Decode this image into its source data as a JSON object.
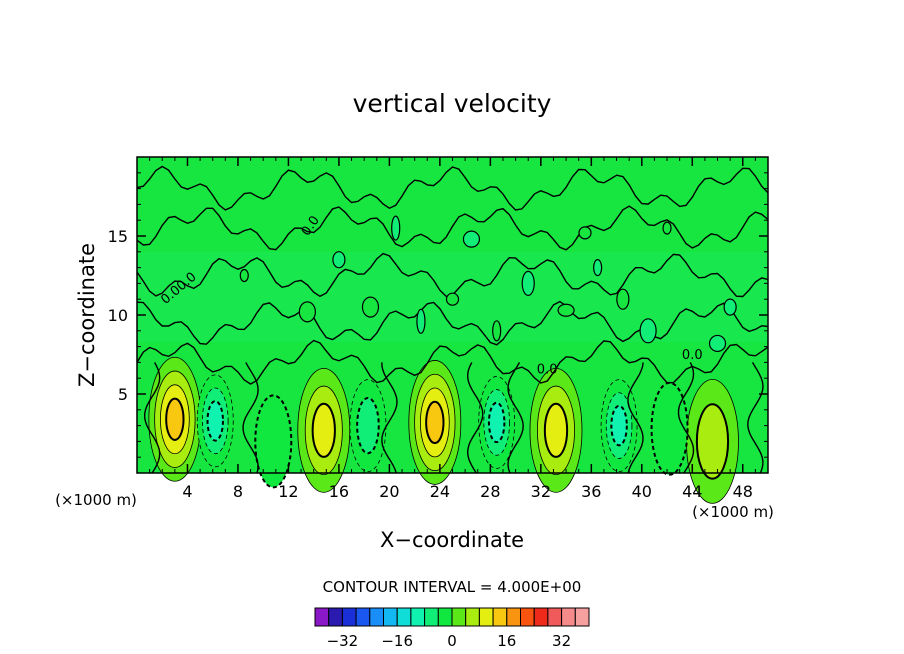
{
  "chart_data": {
    "type": "heatmap",
    "title": "vertical velocity",
    "xlabel": "X−coordinate",
    "ylabel": "Z−coordinate",
    "x_unit_left": "(×1000 m)",
    "x_unit_right": "(×1000 m)",
    "xlim": [
      0,
      50
    ],
    "ylim": [
      0,
      20
    ],
    "x_ticks": [
      4,
      8,
      12,
      16,
      20,
      24,
      28,
      32,
      36,
      40,
      44,
      48
    ],
    "y_ticks": [
      5,
      10,
      15
    ],
    "contour_line_labels": [
      "0.00.0",
      "0.0",
      "0.0",
      "0.0"
    ],
    "contour_interval_text": "CONTOUR INTERVAL = 4.000E+00",
    "colorbar": {
      "colors": [
        "#8a17c8",
        "#2b1ab0",
        "#1a2fd8",
        "#1a56f0",
        "#1a8ef8",
        "#13b8f2",
        "#10dcd8",
        "#10f2b0",
        "#10ee78",
        "#10e840",
        "#5ae818",
        "#a8ec10",
        "#e4ee10",
        "#f8c810",
        "#f89410",
        "#f85410",
        "#f02a1a",
        "#f05a5a",
        "#f58a8a",
        "#f7a0a0"
      ],
      "min": -40,
      "max": 40,
      "tick_labels": [
        "−32",
        "−16",
        "0",
        "16",
        "32"
      ],
      "tick_values": [
        -32,
        -16,
        0,
        16,
        32
      ]
    },
    "features": [
      {
        "kind": "updraft",
        "x": 3.0,
        "z": 3.4,
        "value": 14
      },
      {
        "kind": "updraft",
        "x": 14.8,
        "z": 2.7,
        "value": 13
      },
      {
        "kind": "updraft",
        "x": 23.6,
        "z": 3.2,
        "value": 14
      },
      {
        "kind": "updraft",
        "x": 33.2,
        "z": 2.7,
        "value": 13
      },
      {
        "kind": "updraft",
        "x": 45.6,
        "z": 2.0,
        "value": 8
      },
      {
        "kind": "downdraft",
        "x": 6.2,
        "z": 3.3,
        "value": -10
      },
      {
        "kind": "downdraft",
        "x": 10.8,
        "z": 2.0,
        "value": -5
      },
      {
        "kind": "downdraft",
        "x": 18.3,
        "z": 3.0,
        "value": -7
      },
      {
        "kind": "downdraft",
        "x": 28.5,
        "z": 3.2,
        "value": -10
      },
      {
        "kind": "downdraft",
        "x": 38.2,
        "z": 3.0,
        "value": -12
      },
      {
        "kind": "downdraft",
        "x": 42.2,
        "z": 2.8,
        "value": -5
      }
    ]
  }
}
